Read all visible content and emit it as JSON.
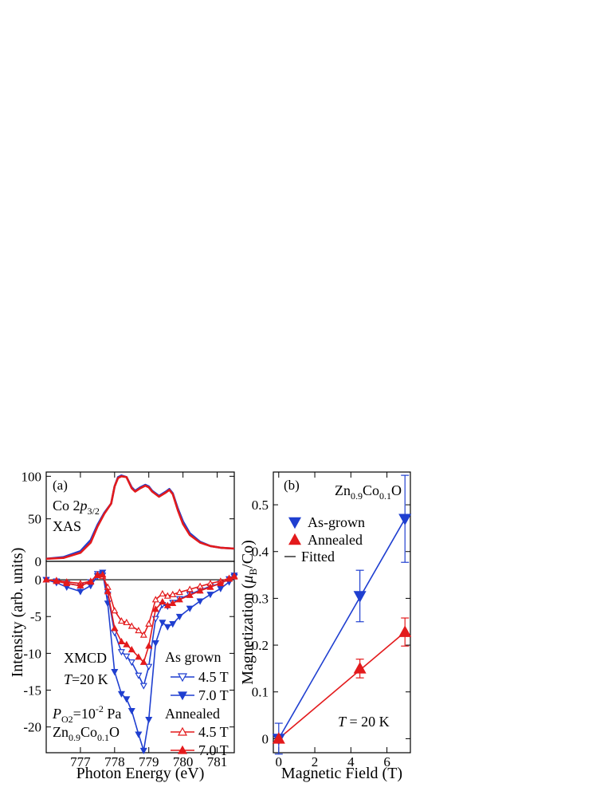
{
  "colors": {
    "blue": "#1f3fd0",
    "red": "#e31a1c",
    "black": "#000000"
  },
  "chart_data": [
    {
      "id": "a-xas",
      "type": "line",
      "panel_label": "(a)",
      "annotation": [
        "Co 2",
        "p",
        "3/2",
        "XAS"
      ],
      "xlim": [
        776,
        781.5
      ],
      "ylim": [
        0,
        105
      ],
      "yticks": [
        0,
        50,
        100
      ],
      "series": [
        {
          "color": "#1f3fd0",
          "x": [
            776.0,
            776.5,
            777.0,
            777.3,
            777.5,
            777.7,
            777.9,
            778.0,
            778.1,
            778.2,
            778.35,
            778.5,
            778.6,
            778.75,
            778.9,
            779.0,
            779.1,
            779.3,
            779.5,
            779.6,
            779.7,
            779.85,
            780.0,
            780.2,
            780.5,
            780.8,
            781.1,
            781.5
          ],
          "y": [
            3,
            5,
            12,
            25,
            43,
            57,
            68,
            88,
            99,
            101,
            99,
            87,
            83,
            87,
            90,
            88,
            83,
            77,
            82,
            85,
            80,
            62,
            47,
            33,
            23,
            18,
            16,
            15
          ]
        },
        {
          "color": "#e31a1c",
          "x": [
            776.0,
            776.5,
            777.0,
            777.3,
            777.5,
            777.7,
            777.9,
            778.0,
            778.1,
            778.2,
            778.35,
            778.5,
            778.6,
            778.75,
            778.9,
            779.0,
            779.1,
            779.3,
            779.5,
            779.6,
            779.7,
            779.85,
            780.0,
            780.2,
            780.5,
            780.8,
            781.1,
            781.5
          ],
          "y": [
            3,
            4,
            10,
            22,
            41,
            56,
            68,
            88,
            98,
            100,
            99,
            86,
            82,
            86,
            89,
            87,
            82,
            76,
            81,
            84,
            79,
            60,
            44,
            31,
            22,
            18,
            16,
            15
          ]
        }
      ]
    },
    {
      "id": "a-xmcd",
      "type": "line",
      "xlim": [
        776,
        781.5
      ],
      "ylim": [
        -23.5,
        2.5
      ],
      "yticks": [
        0,
        -5,
        -10,
        -15,
        -20
      ],
      "xticks": [
        777,
        778,
        779,
        780,
        781
      ],
      "xlabel": "Photon Energy (eV)",
      "ylabel": "Intensity (arb. units)",
      "annotations": {
        "xmcd": "XMCD",
        "temp_sym": "T",
        "temp_val": "=20 K",
        "p_sym": "P",
        "p_sub": "O2",
        "p_eq": "=10",
        "p_exp": "-2",
        "p_unit": " Pa",
        "f_zn": "Zn",
        "f_zn_sub": "0.9",
        "f_co": "Co",
        "f_co_sub": "0.1",
        "f_o": "O"
      },
      "legend": {
        "group1_title": "As grown",
        "group2_title": "Annealed",
        "items": [
          "4.5 T",
          "7.0 T",
          "4.5 T",
          "7.0 T"
        ]
      },
      "series": [
        {
          "name": "As grown 4.5 T",
          "color": "#1f3fd0",
          "marker": "tri-down-open",
          "x": [
            776.0,
            776.3,
            776.6,
            777.0,
            777.3,
            777.5,
            777.65,
            777.8,
            778.0,
            778.2,
            778.35,
            778.5,
            778.7,
            778.85,
            779.0,
            779.2,
            779.4,
            779.55,
            779.7,
            779.9,
            780.2,
            780.5,
            780.8,
            781.1,
            781.35,
            781.5
          ],
          "y": [
            0,
            -0.2,
            -0.5,
            -0.8,
            -0.3,
            0.8,
            0.6,
            -2.0,
            -7.2,
            -9.8,
            -10.4,
            -11.2,
            -13.0,
            -14.4,
            -11.8,
            -5.3,
            -3.4,
            -3.6,
            -3.1,
            -2.6,
            -2.0,
            -1.4,
            -0.9,
            -0.5,
            0.1,
            0.4
          ]
        },
        {
          "name": "As grown 7.0 T",
          "color": "#1f3fd0",
          "marker": "tri-down-filled",
          "x": [
            776.0,
            776.3,
            776.6,
            777.0,
            777.3,
            777.5,
            777.65,
            777.8,
            778.0,
            778.2,
            778.35,
            778.5,
            778.7,
            778.85,
            779.0,
            779.2,
            779.4,
            779.55,
            779.7,
            779.9,
            780.2,
            780.5,
            780.8,
            781.1,
            781.35,
            781.5
          ],
          "y": [
            0,
            -0.4,
            -1.0,
            -1.6,
            -0.8,
            0.5,
            1.0,
            -3.2,
            -12.5,
            -15.5,
            -16.2,
            -17.8,
            -21.0,
            -23.2,
            -19.0,
            -8.6,
            -5.8,
            -6.4,
            -6.0,
            -5.0,
            -3.9,
            -2.9,
            -2.0,
            -1.2,
            -0.3,
            0.6
          ]
        },
        {
          "name": "Annealed 4.5 T",
          "color": "#e31a1c",
          "marker": "tri-up-open",
          "x": [
            776.0,
            776.3,
            776.6,
            777.0,
            777.3,
            777.5,
            777.65,
            777.8,
            778.0,
            778.2,
            778.35,
            778.5,
            778.7,
            778.85,
            779.0,
            779.2,
            779.4,
            779.55,
            779.7,
            779.9,
            780.2,
            780.5,
            780.8,
            781.1,
            781.35,
            781.5
          ],
          "y": [
            0,
            -0.1,
            -0.3,
            -0.5,
            -0.2,
            0.6,
            0.5,
            -1.0,
            -4.2,
            -5.6,
            -5.8,
            -6.3,
            -6.9,
            -7.5,
            -6.0,
            -2.7,
            -1.9,
            -2.2,
            -2.0,
            -1.7,
            -1.3,
            -0.9,
            -0.5,
            -0.2,
            0.2,
            0.4
          ]
        },
        {
          "name": "Annealed 7.0 T",
          "color": "#e31a1c",
          "marker": "tri-up-filled",
          "x": [
            776.0,
            776.3,
            776.6,
            777.0,
            777.3,
            777.5,
            777.65,
            777.8,
            778.0,
            778.2,
            778.35,
            778.5,
            778.7,
            778.85,
            779.0,
            779.2,
            779.4,
            779.55,
            779.7,
            779.9,
            780.2,
            780.5,
            780.8,
            781.1,
            781.35,
            781.5
          ],
          "y": [
            0,
            -0.2,
            -0.5,
            -0.8,
            -0.3,
            0.7,
            0.7,
            -1.6,
            -6.6,
            -8.4,
            -8.8,
            -9.5,
            -10.5,
            -11.2,
            -9.0,
            -4.0,
            -3.0,
            -3.5,
            -3.2,
            -2.7,
            -2.1,
            -1.5,
            -1.0,
            -0.5,
            0.1,
            0.5
          ]
        }
      ]
    },
    {
      "id": "b",
      "type": "scatter",
      "panel_label": "(b)",
      "xlim": [
        -0.3,
        7.3
      ],
      "ylim": [
        -0.03,
        0.57
      ],
      "xticks": [
        0,
        2,
        4,
        6
      ],
      "yticks": [
        0,
        0.1,
        0.2,
        0.3,
        0.4,
        0.5
      ],
      "ytick_labels": [
        "0",
        "0.1",
        "0.2",
        "0.3",
        "0.4",
        "0.5"
      ],
      "xlabel": "Magnetic Field (T)",
      "ylabel_pre": "Magnetization (",
      "ylabel_mu": "μ",
      "ylabel_sub": "B",
      "ylabel_post": "/Co)",
      "formula": {
        "zn": "Zn",
        "zn_sub": "0.9",
        "co": "Co",
        "co_sub": "0.1",
        "o": "O"
      },
      "temp_sym": "T",
      "temp_val": " = 20 K",
      "legend": [
        "As-grown",
        "Annealed",
        "Fitted"
      ],
      "series": [
        {
          "name": "As-grown",
          "color": "#1f3fd0",
          "marker": "tri-down-filled",
          "x": [
            0,
            4.5,
            7.0
          ],
          "y": [
            0.0,
            0.305,
            0.47
          ],
          "err": [
            0.033,
            0.055,
            0.093
          ],
          "fit": [
            [
              0,
              0.0
            ],
            [
              7.0,
              0.47
            ]
          ]
        },
        {
          "name": "Annealed",
          "color": "#e31a1c",
          "marker": "tri-up-filled",
          "x": [
            0,
            4.5,
            7.0
          ],
          "y": [
            0.0,
            0.15,
            0.228
          ],
          "err": [
            0.0,
            0.02,
            0.03
          ],
          "fit": [
            [
              0,
              0.0
            ],
            [
              7.0,
              0.228
            ]
          ]
        }
      ]
    }
  ]
}
